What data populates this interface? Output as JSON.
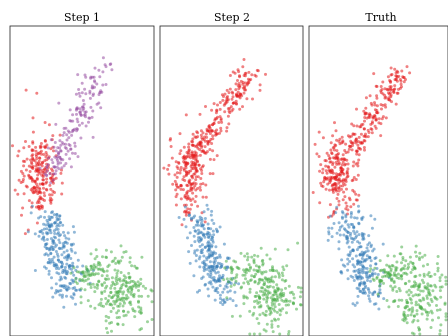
{
  "chart_data": [
    {
      "type": "scatter",
      "title": "Step 1",
      "grid": false,
      "series": [
        {
          "color": "#e41a1c",
          "points_est": 900
        },
        {
          "color": "#984ea3",
          "points_est": 700
        },
        {
          "color": "#377eb8",
          "points_est": 1000
        },
        {
          "color": "#4daf4a",
          "points_est": 1100
        }
      ]
    },
    {
      "type": "scatter",
      "title": "Step 2",
      "grid": false,
      "series": [
        {
          "color": "#e41a1c",
          "points_est": 1600
        },
        {
          "color": "#377eb8",
          "points_est": 1000
        },
        {
          "color": "#4daf4a",
          "points_est": 1100
        }
      ]
    },
    {
      "type": "scatter",
      "title": "Truth",
      "grid": false,
      "series": [
        {
          "color": "#e41a1c",
          "points_est": 1600
        },
        {
          "color": "#377eb8",
          "points_est": 1000
        },
        {
          "color": "#4daf4a",
          "points_est": 1100
        }
      ]
    }
  ]
}
